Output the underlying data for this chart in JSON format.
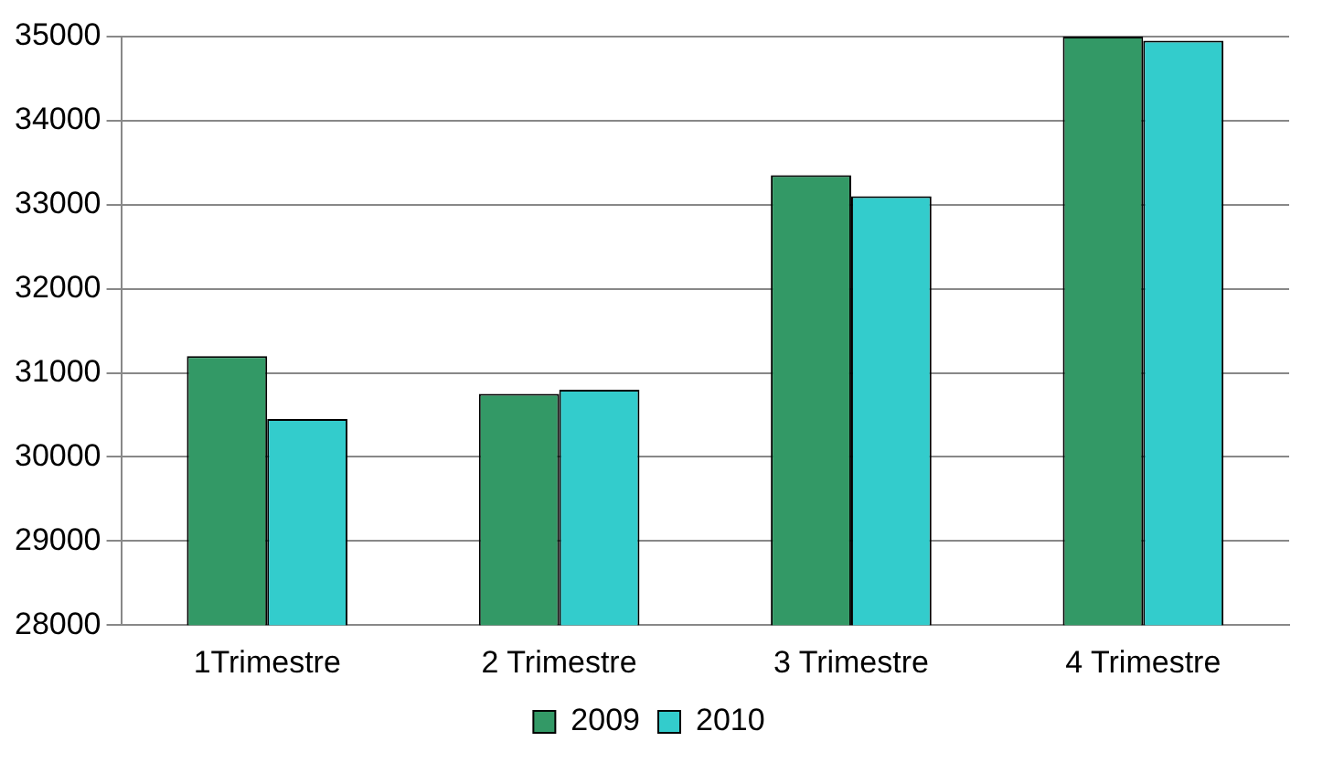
{
  "chart_data": {
    "type": "bar",
    "categories": [
      "1Trimestre",
      "2 Trimestre",
      "3 Trimestre",
      "4 Trimestre"
    ],
    "series": [
      {
        "name": "2009",
        "color": "#339966",
        "values": [
          31200,
          30750,
          33350,
          35000
        ]
      },
      {
        "name": "2010",
        "color": "#33cccc",
        "values": [
          30450,
          30800,
          33100,
          34950
        ]
      }
    ],
    "ylim": [
      28000,
      35000
    ],
    "yticks": [
      28000,
      29000,
      30000,
      31000,
      32000,
      33000,
      34000,
      35000
    ],
    "grid": "y",
    "legend": "bottom"
  }
}
